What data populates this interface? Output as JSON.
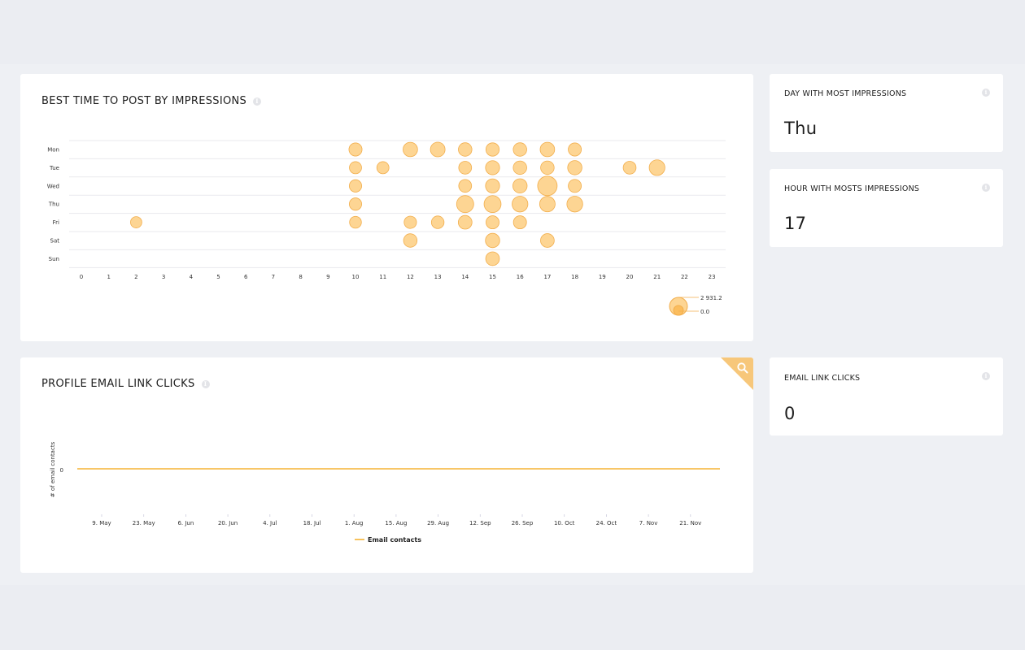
{
  "best_time_card": {
    "title": "BEST TIME TO POST BY IMPRESSIONS",
    "info_icon": "info-icon"
  },
  "stats": {
    "day": {
      "label": "DAY WITH MOST IMPRESSIONS",
      "value": "Thu"
    },
    "hour": {
      "label": "HOUR WITH MOSTS IMPRESSIONS",
      "value": "17"
    },
    "email": {
      "label": "EMAIL LINK CLICKS",
      "value": "0"
    }
  },
  "email_card": {
    "title": "PROFILE EMAIL LINK CLICKS",
    "zoom_icon": "search-icon"
  },
  "colors": {
    "bubble_fill": "#fdd593",
    "bubble_stroke": "#f2ae4c",
    "line": "#f5b335",
    "grid": "#e9e9ee",
    "zoom_bg": "#f7c77a"
  },
  "chart_data": [
    {
      "type": "scatter",
      "title": "BEST TIME TO POST BY IMPRESSIONS",
      "x_ticks": [
        "0",
        "1",
        "2",
        "3",
        "4",
        "5",
        "6",
        "7",
        "8",
        "9",
        "10",
        "11",
        "12",
        "13",
        "14",
        "15",
        "16",
        "17",
        "18",
        "19",
        "20",
        "21",
        "22",
        "23"
      ],
      "y_categories": [
        "Mon",
        "Tue",
        "Wed",
        "Thu",
        "Fri",
        "Sat",
        "Sun"
      ],
      "size_legend": {
        "max_label": "2 931.2",
        "min_label": "0.0",
        "max": 2931.2,
        "min": 0
      },
      "points": [
        {
          "day": "Mon",
          "hour": 10,
          "value": 750
        },
        {
          "day": "Mon",
          "hour": 12,
          "value": 1100
        },
        {
          "day": "Mon",
          "hour": 13,
          "value": 1150
        },
        {
          "day": "Mon",
          "hour": 14,
          "value": 850
        },
        {
          "day": "Mon",
          "hour": 15,
          "value": 800
        },
        {
          "day": "Mon",
          "hour": 16,
          "value": 850
        },
        {
          "day": "Mon",
          "hour": 17,
          "value": 1100
        },
        {
          "day": "Mon",
          "hour": 18,
          "value": 750
        },
        {
          "day": "Tue",
          "hour": 10,
          "value": 550
        },
        {
          "day": "Tue",
          "hour": 11,
          "value": 550
        },
        {
          "day": "Tue",
          "hour": 14,
          "value": 700
        },
        {
          "day": "Tue",
          "hour": 15,
          "value": 1000
        },
        {
          "day": "Tue",
          "hour": 16,
          "value": 850
        },
        {
          "day": "Tue",
          "hour": 17,
          "value": 850
        },
        {
          "day": "Tue",
          "hour": 18,
          "value": 1050
        },
        {
          "day": "Tue",
          "hour": 20,
          "value": 700
        },
        {
          "day": "Tue",
          "hour": 21,
          "value": 1450
        },
        {
          "day": "Wed",
          "hour": 10,
          "value": 600
        },
        {
          "day": "Wed",
          "hour": 14,
          "value": 700
        },
        {
          "day": "Wed",
          "hour": 15,
          "value": 1000
        },
        {
          "day": "Wed",
          "hour": 16,
          "value": 1050
        },
        {
          "day": "Wed",
          "hour": 17,
          "value": 2931.2
        },
        {
          "day": "Wed",
          "hour": 18,
          "value": 750
        },
        {
          "day": "Thu",
          "hour": 10,
          "value": 600
        },
        {
          "day": "Thu",
          "hour": 14,
          "value": 1950
        },
        {
          "day": "Thu",
          "hour": 15,
          "value": 1900
        },
        {
          "day": "Thu",
          "hour": 16,
          "value": 1500
        },
        {
          "day": "Thu",
          "hour": 17,
          "value": 1400
        },
        {
          "day": "Thu",
          "hour": 18,
          "value": 1500
        },
        {
          "day": "Fri",
          "hour": 2,
          "value": 400
        },
        {
          "day": "Fri",
          "hour": 10,
          "value": 500
        },
        {
          "day": "Fri",
          "hour": 12,
          "value": 600
        },
        {
          "day": "Fri",
          "hour": 13,
          "value": 650
        },
        {
          "day": "Fri",
          "hour": 14,
          "value": 900
        },
        {
          "day": "Fri",
          "hour": 15,
          "value": 750
        },
        {
          "day": "Fri",
          "hour": 16,
          "value": 750
        },
        {
          "day": "Sat",
          "hour": 12,
          "value": 850
        },
        {
          "day": "Sat",
          "hour": 15,
          "value": 1050
        },
        {
          "day": "Sat",
          "hour": 17,
          "value": 900
        },
        {
          "day": "Sun",
          "hour": 15,
          "value": 900
        }
      ]
    },
    {
      "type": "line",
      "title": "PROFILE EMAIL LINK CLICKS",
      "ylabel": "# of email contacts",
      "y_ticks": [
        "0"
      ],
      "x_ticks": [
        "9. May",
        "23. May",
        "6. Jun",
        "20. Jun",
        "4. Jul",
        "18. Jul",
        "1. Aug",
        "15. Aug",
        "29. Aug",
        "12. Sep",
        "26. Sep",
        "10. Oct",
        "24. Oct",
        "7. Nov",
        "21. Nov"
      ],
      "series": [
        {
          "name": "Email contacts",
          "values": [
            0,
            0,
            0,
            0,
            0,
            0,
            0,
            0,
            0,
            0,
            0,
            0,
            0,
            0,
            0
          ]
        }
      ]
    }
  ]
}
